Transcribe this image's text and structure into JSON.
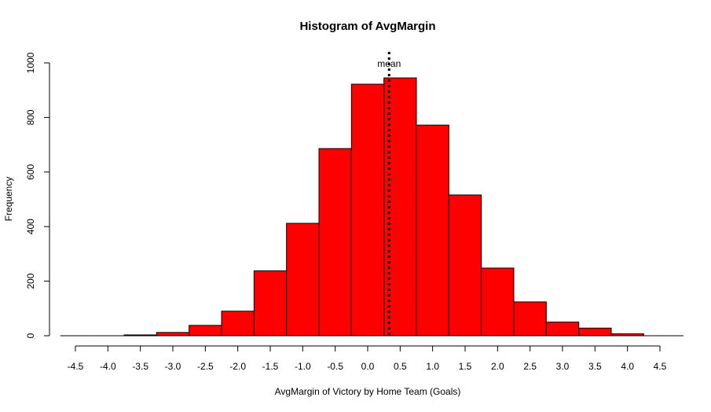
{
  "chart_data": {
    "type": "bar",
    "title": "Histogram of AvgMargin",
    "xlabel": "AvgMargin of Victory by Home Team (Goals)",
    "ylabel": "Frequency",
    "bin_width": 0.5,
    "bins": [
      {
        "start": -4.25,
        "end": -3.75,
        "count": 0
      },
      {
        "start": -3.75,
        "end": -3.25,
        "count": 3
      },
      {
        "start": -3.25,
        "end": -2.75,
        "count": 12
      },
      {
        "start": -2.75,
        "end": -2.25,
        "count": 38
      },
      {
        "start": -2.25,
        "end": -1.75,
        "count": 90
      },
      {
        "start": -1.75,
        "end": -1.25,
        "count": 238
      },
      {
        "start": -1.25,
        "end": -0.75,
        "count": 412
      },
      {
        "start": -0.75,
        "end": -0.25,
        "count": 686
      },
      {
        "start": -0.25,
        "end": 0.25,
        "count": 922
      },
      {
        "start": 0.25,
        "end": 0.75,
        "count": 945
      },
      {
        "start": 0.75,
        "end": 1.25,
        "count": 772
      },
      {
        "start": 1.25,
        "end": 1.75,
        "count": 516
      },
      {
        "start": 1.75,
        "end": 2.25,
        "count": 248
      },
      {
        "start": 2.25,
        "end": 2.75,
        "count": 124
      },
      {
        "start": 2.75,
        "end": 3.25,
        "count": 50
      },
      {
        "start": 3.25,
        "end": 3.75,
        "count": 28
      },
      {
        "start": 3.75,
        "end": 4.25,
        "count": 7
      }
    ],
    "xlim": [
      -4.5,
      4.5
    ],
    "ylim": [
      0,
      1000
    ],
    "x_ticks": [
      -4.5,
      -4.0,
      -3.5,
      -3.0,
      -2.5,
      -2.0,
      -1.5,
      -1.0,
      -0.5,
      0.0,
      0.5,
      1.0,
      1.5,
      2.0,
      2.5,
      3.0,
      3.5,
      4.0,
      4.5
    ],
    "x_tick_labels": [
      "-4.5",
      "-4.0",
      "-3.5",
      "-3.0",
      "-2.5",
      "-2.0",
      "-1.5",
      "-1.0",
      "-0.5",
      "0.0",
      "0.5",
      "1.0",
      "1.5",
      "2.0",
      "2.5",
      "3.0",
      "3.5",
      "4.0",
      "4.5"
    ],
    "y_ticks": [
      0,
      200,
      400,
      600,
      800,
      1000
    ],
    "y_tick_labels": [
      "0",
      "200",
      "400",
      "600",
      "800",
      "1000"
    ],
    "mean_line": {
      "value": 0.33,
      "label": "mean",
      "style": "dotted"
    },
    "bar_color": "#ff0000",
    "bar_edge_color": "#000000",
    "grid": false
  }
}
